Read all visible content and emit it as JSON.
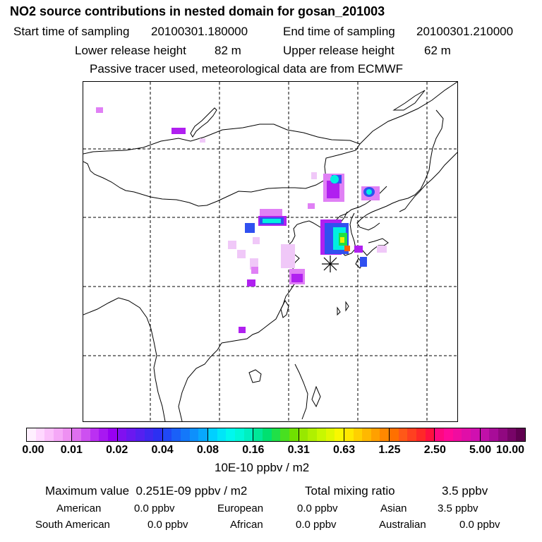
{
  "header": {
    "title": "NO2 source contributions in nested domain for gosan_201003",
    "start_label": "Start time of sampling",
    "start_value": "20100301.180000",
    "end_label": "End time of sampling",
    "end_value": "20100301.210000",
    "lower_label": "Lower release height",
    "lower_value": "82 m",
    "upper_label": "Upper release height",
    "upper_value": "62 m",
    "note": "Passive tracer used, meteorological data are from ECMWF"
  },
  "map": {
    "description_icon": "receptor-star-icon",
    "plume_colors": {
      "faint": "#f0c8f8",
      "light": "#e080f5",
      "violet": "#b020f0",
      "blue": "#3050f0",
      "cyan": "#00f0e0",
      "green": "#20e040",
      "yellow": "#f0f000",
      "orange": "#ff6000"
    }
  },
  "colorbar": {
    "ticks": [
      "0.00",
      "0.01",
      "0.02",
      "0.04",
      "0.08",
      "0.16",
      "0.31",
      "0.63",
      "1.25",
      "2.50",
      "5.00",
      "10.00"
    ],
    "segments": [
      [
        "#fff0ff",
        "#ffd8ff",
        "#fbc0fb",
        "#f5a8f7",
        "#ee90f2"
      ],
      [
        "#df70ef",
        "#cd50f0",
        "#bb30f2",
        "#a818f2",
        "#9800f2"
      ],
      [
        "#8010f0",
        "#6a18f0",
        "#5520f0",
        "#3f28f0",
        "#2c30f2"
      ],
      [
        "#2048f5",
        "#1a60f8",
        "#1478fa",
        "#0e90fc",
        "#08a8fe"
      ],
      [
        "#00d0ff",
        "#00e6f8",
        "#00f8ee",
        "#00f8d8",
        "#00f0c0"
      ],
      [
        "#00e898",
        "#00e070",
        "#20e048",
        "#48e020",
        "#70e000"
      ],
      [
        "#98e800",
        "#b0f000",
        "#c8f800",
        "#e0f800",
        "#f8f800"
      ],
      [
        "#ffe800",
        "#ffd000",
        "#ffb800",
        "#ffa000",
        "#ff8800"
      ],
      [
        "#ff7000",
        "#ff5818",
        "#ff4020",
        "#ff2828",
        "#ff1040"
      ],
      [
        "#ff0880",
        "#ff0a98",
        "#f00ca0",
        "#e00ea8",
        "#d010b0"
      ],
      [
        "#c010a8",
        "#a80c98",
        "#900880",
        "#780468",
        "#600050"
      ]
    ],
    "unit": "10E-10 ppbv / m2"
  },
  "summary": {
    "max_label": "Maximum value",
    "max_value": "0.251E-09 ppbv / m2",
    "total_label": "Total mixing ratio",
    "total_value": "3.5 ppbv",
    "regions": [
      {
        "name": "American",
        "value": "0.0 ppbv"
      },
      {
        "name": "European",
        "value": "0.0 ppbv"
      },
      {
        "name": "Asian",
        "value": "3.5 ppbv"
      },
      {
        "name": "South American",
        "value": "0.0 ppbv"
      },
      {
        "name": "African",
        "value": "0.0 ppbv"
      },
      {
        "name": "Australian",
        "value": "0.0 ppbv"
      }
    ]
  }
}
